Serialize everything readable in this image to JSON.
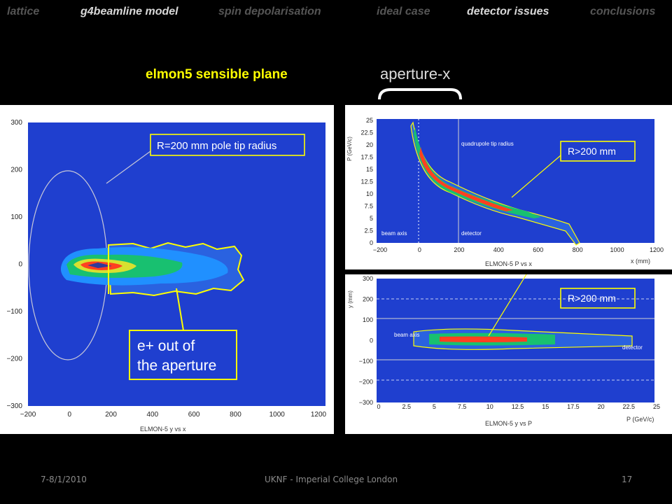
{
  "nav": {
    "items": [
      {
        "label": "lattice",
        "state": "dim"
      },
      {
        "label": "g4beamline model",
        "state": "active"
      },
      {
        "label": "spin depolarisation",
        "state": "dim"
      },
      {
        "label": "ideal case",
        "state": "dim"
      },
      {
        "label": "detector issues",
        "state": "active"
      },
      {
        "label": "conclusions",
        "state": "dim"
      }
    ]
  },
  "slide": {
    "title": "elmon5 sensible plane",
    "aperture_label": "aperture-x"
  },
  "colors": {
    "background": "#000000",
    "plot_fill": "#1f3fcf",
    "annotation": "#ffff00",
    "title": "#ffff00",
    "grid_dash": "#ffffff",
    "contour_core": "#ff4020",
    "contour_mid": "#18c070",
    "contour_edge": "#2090ff"
  },
  "chart_data": [
    {
      "type": "heatmap",
      "name": "ELMON-5 y vs x",
      "xlabel": "ELMON-5 y vs x",
      "xlim": [
        -200,
        1200
      ],
      "ylim": [
        -300,
        300
      ],
      "xticks": [
        "−200",
        "0",
        "200",
        "400",
        "600",
        "800",
        "1000",
        "1200"
      ],
      "yticks": [
        "300",
        "200",
        "100",
        "0",
        "−100",
        "−200",
        "−300"
      ],
      "annotations": [
        {
          "text": "R=200 mm pole tip radius"
        },
        {
          "lines": [
            "e+ out of",
            "the aperture"
          ]
        }
      ],
      "circle_radius_mm": 200,
      "contour_levels": [
        {
          "level": "edge",
          "points": [
            [
              -15,
              0,
              0
            ],
            [
              30,
              25,
              1
            ],
            [
              230,
              20,
              1
            ],
            [
              450,
              10,
              2
            ],
            [
              650,
              0,
              3
            ],
            [
              820,
              30,
              3
            ]
          ]
        },
        {
          "level": "mid",
          "points": [
            [
              -15,
              0,
              0
            ],
            [
              30,
              25,
              1
            ],
            [
              180,
              20,
              1
            ],
            [
              320,
              0,
              2
            ]
          ]
        },
        {
          "level": "core",
          "points": [
            [
              -20,
              0,
              0
            ],
            [
              40,
              5,
              1
            ],
            [
              90,
              0,
              1
            ]
          ]
        }
      ]
    },
    {
      "type": "heatmap",
      "name": "ELMON-5 P vs x",
      "xlabel": "ELMON-5 P vs x",
      "x_axis_unit": "x (mm)",
      "y_axis_unit": "P (GeV/c)",
      "xlim": [
        -200,
        1200
      ],
      "ylim": [
        0,
        25
      ],
      "xticks": [
        "−200",
        "0",
        "200",
        "400",
        "600",
        "800",
        "1000",
        "1200"
      ],
      "yticks": [
        "25",
        "22.5",
        "20",
        "17.5",
        "15",
        "12.5",
        "10",
        "7.5",
        "5",
        "2.5",
        "0"
      ],
      "labels": [
        "quadrupole tip radius",
        "beam axis",
        "detector"
      ],
      "annotation": "R>200 mm",
      "curve": {
        "x": [
          0,
          100,
          200,
          300,
          400,
          500,
          600,
          700,
          800
        ],
        "y": [
          22.5,
          15.5,
          12,
          10,
          8.5,
          7.5,
          6.5,
          5,
          4
        ]
      }
    },
    {
      "type": "heatmap",
      "name": "ELMON-5 y vs P",
      "xlabel": "ELMON-5 y vs P",
      "x_axis_unit": "P (GeV/c)",
      "y_axis_unit": "y (mm)",
      "xlim": [
        0,
        25
      ],
      "ylim": [
        -300,
        300
      ],
      "xticks": [
        "0",
        "2.5",
        "5",
        "7.5",
        "10",
        "12.5",
        "15",
        "17.5",
        "20",
        "22.5",
        "25"
      ],
      "yticks": [
        "300",
        "200",
        "100",
        "0",
        "−100",
        "−200",
        "−300"
      ],
      "labels": [
        "beam axis",
        "detector"
      ],
      "annotation": "R>200 mm",
      "band": {
        "x_start": 0,
        "x_end": 25,
        "y_center": 0
      }
    }
  ],
  "footer": {
    "date": "7-8/1/2010",
    "institution": "UKNF - Imperial College London",
    "page": "17"
  }
}
